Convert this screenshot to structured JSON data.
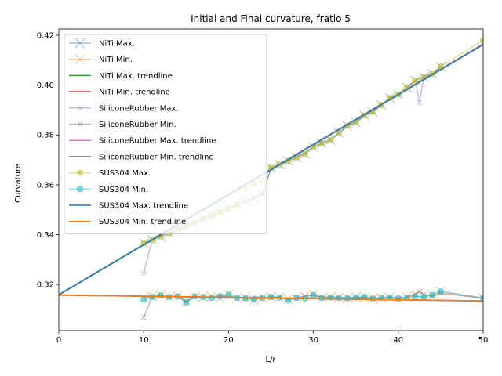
{
  "chart_data": {
    "type": "line",
    "title": "Initial and Final curvature, fratio 5",
    "xlabel": "L/r",
    "ylabel": "Curvature",
    "xlim": [
      0,
      50
    ],
    "ylim": [
      0.3015,
      0.4225
    ],
    "xticks": [
      0,
      10,
      20,
      30,
      40,
      50
    ],
    "yticks": [
      0.32,
      0.34,
      0.36,
      0.38,
      0.4,
      0.42
    ],
    "ytick_labels": [
      "0.32",
      "0.34",
      "0.36",
      "0.38",
      "0.40",
      "0.42"
    ],
    "grid": false,
    "legend_position": "top-left",
    "series": [
      {
        "name": "NiTi Max.",
        "color": "#1f77b4",
        "marker": "x-large",
        "kind": "data",
        "x": [
          10,
          11,
          12,
          13,
          14,
          15,
          16,
          17,
          18,
          19,
          20,
          21,
          22,
          23,
          24,
          25,
          26,
          27,
          28,
          29,
          30,
          31,
          32,
          33,
          34,
          35,
          36,
          37,
          38,
          39,
          40,
          41,
          42,
          43,
          44,
          45
        ],
        "y": [
          0.3365,
          0.3379,
          0.3393,
          0.3407,
          0.3421,
          0.3435,
          0.3449,
          0.3463,
          0.3477,
          0.3491,
          0.3505,
          0.3519,
          0.3533,
          0.3547,
          0.3561,
          0.3668,
          0.3682,
          0.3696,
          0.371,
          0.3724,
          0.3752,
          0.3766,
          0.378,
          0.3808,
          0.3836,
          0.385,
          0.3878,
          0.3892,
          0.392,
          0.3948,
          0.3962,
          0.399,
          0.4018,
          0.4032,
          0.4046,
          0.4074
        ]
      },
      {
        "name": "NiTi Min.",
        "color": "#ff7f0e",
        "marker": "x-large",
        "kind": "data",
        "x": [
          10,
          11,
          12,
          13,
          14,
          15,
          16,
          17,
          18,
          19,
          20,
          21,
          22,
          23,
          24,
          25,
          26,
          27,
          28,
          29,
          30,
          31,
          32,
          33,
          34,
          35,
          36,
          37,
          38,
          39,
          40,
          41,
          42,
          43,
          44,
          45,
          50
        ],
        "y": [
          0.3145,
          0.3152,
          0.3158,
          0.3149,
          0.3155,
          0.3132,
          0.315,
          0.3148,
          0.3152,
          0.3146,
          0.316,
          0.3144,
          0.3148,
          0.3136,
          0.3146,
          0.315,
          0.3148,
          0.314,
          0.3146,
          0.3152,
          0.316,
          0.3146,
          0.315,
          0.3148,
          0.3144,
          0.315,
          0.3146,
          0.3142,
          0.3146,
          0.315,
          0.3142,
          0.315,
          0.3154,
          0.315,
          0.3158,
          0.3172,
          0.3145
        ]
      },
      {
        "name": "NiTi Max. trendline",
        "color": "#2ca02c",
        "kind": "trend",
        "x": [
          0,
          50
        ],
        "y": [
          0.316,
          0.4165
        ]
      },
      {
        "name": "NiTi Min. trendline",
        "color": "#d62728",
        "kind": "trend",
        "x": [
          0,
          50
        ],
        "y": [
          0.3158,
          0.3134
        ]
      },
      {
        "name": "SiliconeRubber Max.",
        "color": "#9467bd",
        "marker": "x-small",
        "kind": "data",
        "x": [
          10,
          11,
          12,
          13,
          14,
          15,
          16,
          17,
          18,
          19,
          20,
          21,
          22,
          23,
          24,
          25,
          26,
          27,
          28,
          29,
          30,
          31,
          32,
          33,
          34,
          35,
          36,
          37,
          38,
          39,
          40,
          41,
          42,
          42.5,
          43,
          44,
          45
        ],
        "y": [
          0.3245,
          0.338,
          0.3395,
          0.3408,
          0.342,
          0.3434,
          0.3448,
          0.3462,
          0.3476,
          0.349,
          0.3505,
          0.352,
          0.3534,
          0.3548,
          0.3562,
          0.3668,
          0.368,
          0.3695,
          0.3712,
          0.3726,
          0.3752,
          0.3768,
          0.378,
          0.3808,
          0.3836,
          0.3852,
          0.388,
          0.3894,
          0.392,
          0.395,
          0.3964,
          0.399,
          0.4018,
          0.393,
          0.4032,
          0.4046,
          0.4074
        ]
      },
      {
        "name": "SiliconeRubber Min.",
        "color": "#8c564b",
        "marker": "x-small",
        "kind": "data",
        "x": [
          10,
          11,
          12,
          13,
          14,
          15,
          16,
          17,
          18,
          19,
          20,
          21,
          22,
          23,
          24,
          25,
          26,
          27,
          28,
          29,
          30,
          31,
          32,
          33,
          34,
          35,
          36,
          37,
          38,
          39,
          40,
          41,
          42,
          42.5,
          43,
          44,
          45,
          50
        ],
        "y": [
          0.3068,
          0.315,
          0.3154,
          0.315,
          0.3152,
          0.313,
          0.3152,
          0.315,
          0.315,
          0.3155,
          0.315,
          0.3146,
          0.3145,
          0.315,
          0.3148,
          0.3148,
          0.315,
          0.3142,
          0.3146,
          0.3154,
          0.3156,
          0.3148,
          0.315,
          0.3148,
          0.3146,
          0.3148,
          0.315,
          0.3144,
          0.3146,
          0.315,
          0.3144,
          0.315,
          0.3162,
          0.3172,
          0.316,
          0.3152,
          0.3165,
          0.3145
        ]
      },
      {
        "name": "SiliconeRubber Max. trendline",
        "color": "#e377c2",
        "kind": "trend",
        "x": [
          0,
          50
        ],
        "y": [
          0.3159,
          0.4164
        ]
      },
      {
        "name": "SiliconeRubber Min. trendline",
        "color": "#7f7f7f",
        "kind": "trend",
        "x": [
          0,
          50
        ],
        "y": [
          0.3157,
          0.3133
        ]
      },
      {
        "name": "SUS304 Max.",
        "color": "#bcbd22",
        "marker": "circle",
        "kind": "data",
        "x": [
          10,
          11,
          12,
          13,
          14,
          15,
          16,
          17,
          18,
          19,
          20,
          21,
          22,
          23,
          24,
          25,
          26,
          27,
          28,
          29,
          30,
          31,
          32,
          33,
          34,
          35,
          36,
          37,
          38,
          39,
          40,
          41,
          42,
          43,
          44,
          45,
          50
        ],
        "y": [
          0.3365,
          0.3378,
          0.3392,
          0.3406,
          0.342,
          0.3434,
          0.3448,
          0.3462,
          0.3476,
          0.349,
          0.3504,
          0.3518,
          0.359,
          0.3604,
          0.3618,
          0.3668,
          0.3682,
          0.3696,
          0.371,
          0.3724,
          0.3752,
          0.3766,
          0.378,
          0.3808,
          0.3836,
          0.385,
          0.3878,
          0.3892,
          0.392,
          0.3948,
          0.3962,
          0.399,
          0.4018,
          0.4032,
          0.4046,
          0.4074,
          0.418
        ]
      },
      {
        "name": "SUS304 Min.",
        "color": "#17becf",
        "marker": "circle",
        "kind": "data",
        "x": [
          10,
          11,
          12,
          13,
          14,
          15,
          16,
          17,
          18,
          19,
          20,
          21,
          22,
          23,
          24,
          25,
          26,
          27,
          28,
          29,
          30,
          31,
          32,
          33,
          34,
          35,
          36,
          37,
          38,
          39,
          40,
          41,
          42,
          43,
          44,
          45,
          50
        ],
        "y": [
          0.314,
          0.315,
          0.3156,
          0.315,
          0.3152,
          0.3128,
          0.3152,
          0.315,
          0.3146,
          0.3152,
          0.316,
          0.3146,
          0.3144,
          0.314,
          0.3146,
          0.315,
          0.3148,
          0.3136,
          0.3146,
          0.3144,
          0.3158,
          0.3146,
          0.3148,
          0.3146,
          0.3144,
          0.3148,
          0.315,
          0.3144,
          0.3146,
          0.3148,
          0.3144,
          0.3146,
          0.3152,
          0.315,
          0.3158,
          0.3172,
          0.3145
        ]
      },
      {
        "name": "SUS304 Max. trendline",
        "color": "#1f77b4",
        "kind": "trend",
        "x": [
          0,
          50
        ],
        "y": [
          0.3158,
          0.4162
        ]
      },
      {
        "name": "SUS304 Min. trendline",
        "color": "#ff7f0e",
        "kind": "trend",
        "x": [
          0,
          50
        ],
        "y": [
          0.3158,
          0.3134
        ]
      }
    ]
  }
}
